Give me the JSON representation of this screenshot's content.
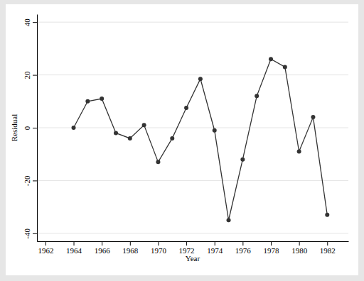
{
  "chart_data": {
    "type": "line",
    "x_label": "Year",
    "y_label": "Residual",
    "x": [
      1964,
      1965,
      1966,
      1967,
      1968,
      1969,
      1970,
      1971,
      1972,
      1973,
      1974,
      1975,
      1976,
      1977,
      1978,
      1979,
      1980,
      1981,
      1982
    ],
    "values": [
      0,
      10,
      11,
      -2,
      -4,
      1,
      -13,
      -4,
      7.5,
      18.5,
      -1,
      -35,
      -12,
      12,
      26,
      23,
      -9,
      4,
      -33
    ],
    "color": "#333333",
    "marker": "circle",
    "grid": true,
    "xlim": [
      1961.4,
      1983.5
    ],
    "ylim": [
      -43,
      43
    ],
    "xticks": [
      1962,
      1964,
      1966,
      1968,
      1970,
      1972,
      1974,
      1976,
      1978,
      1980,
      1982
    ],
    "yticks": [
      -40,
      -20,
      0,
      20,
      40
    ]
  }
}
